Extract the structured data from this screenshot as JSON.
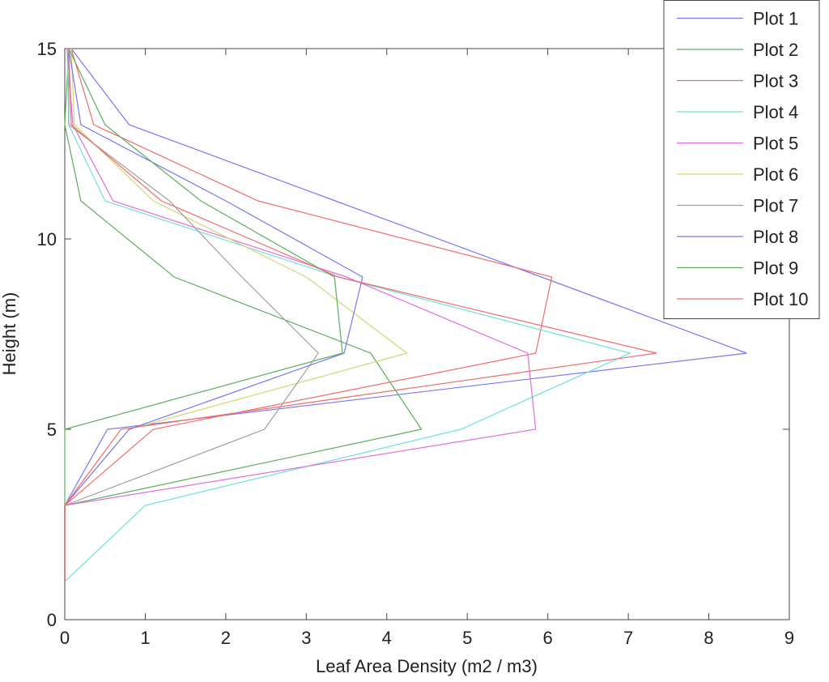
{
  "chart_data": {
    "type": "line",
    "xlabel": "Leaf Area Density (m2 / m3)",
    "ylabel": "Height (m)",
    "y": [
      15,
      13,
      11,
      9,
      7,
      5,
      3,
      1
    ],
    "series": [
      {
        "name": "Plot 1",
        "color": "#7878f0",
        "x": [
          0.08,
          0.8,
          3.36,
          5.92,
          8.47,
          0.53,
          0,
          0
        ]
      },
      {
        "name": "Plot 2",
        "color": "#5cae5c",
        "x": [
          0.05,
          0,
          0.2,
          1.36,
          3.8,
          4.43,
          0,
          0
        ]
      },
      {
        "name": "Plot 3",
        "color": "#f06c6c",
        "x": [
          0.08,
          0.36,
          2.4,
          6.05,
          5.85,
          1.1,
          0,
          0
        ]
      },
      {
        "name": "Plot 4",
        "color": "#6ee0e0",
        "x": [
          0.03,
          0.05,
          0.5,
          3.4,
          7.02,
          4.92,
          1.0,
          0
        ]
      },
      {
        "name": "Plot 5",
        "color": "#e06ee0",
        "x": [
          0.03,
          0.1,
          0.6,
          3.5,
          5.75,
          5.85,
          0,
          0
        ]
      },
      {
        "name": "Plot 6",
        "color": "#d6d66e",
        "x": [
          0.08,
          0.12,
          1.1,
          3.0,
          4.25,
          0.8,
          0,
          0
        ]
      },
      {
        "name": "Plot 7",
        "color": "#a0a0a0",
        "x": [
          0.05,
          0.05,
          1.3,
          2.2,
          3.15,
          2.48,
          0,
          0
        ]
      },
      {
        "name": "Plot 8",
        "color": "#7878f0",
        "x": [
          0.05,
          0.2,
          2.0,
          3.7,
          3.47,
          0.8,
          0,
          0
        ]
      },
      {
        "name": "Plot 9",
        "color": "#5cae5c",
        "x": [
          0.05,
          0.5,
          1.69,
          3.35,
          3.45,
          0,
          0,
          0
        ]
      },
      {
        "name": "Plot 10",
        "color": "#f06c6c",
        "x": [
          0.05,
          0.08,
          1.2,
          3.4,
          7.35,
          0.7,
          0,
          0
        ]
      }
    ],
    "xlim": [
      0,
      9
    ],
    "xticks": [
      0,
      1,
      2,
      3,
      4,
      5,
      6,
      7,
      8,
      9
    ],
    "ylim": [
      0,
      15
    ],
    "yticks": [
      0,
      5,
      10,
      15
    ],
    "legend": "top-right"
  }
}
